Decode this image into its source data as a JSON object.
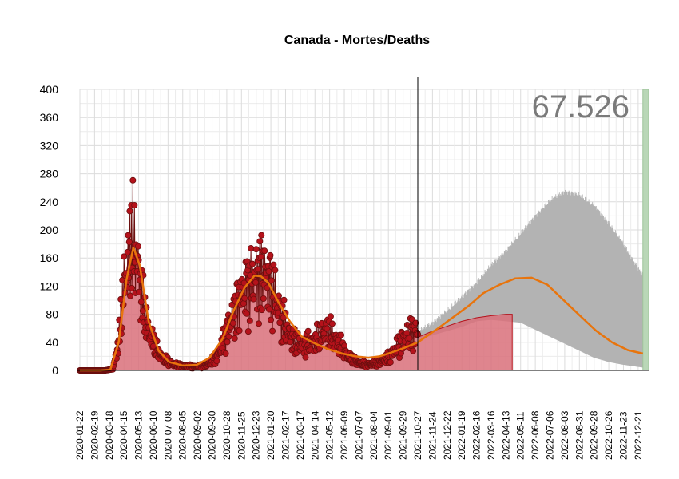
{
  "chart_data": {
    "type": "line",
    "title": "Canada - Mortes/Deaths",
    "annotation": "67.526",
    "ylim": [
      0,
      400
    ],
    "y_ticks": [
      0,
      40,
      80,
      120,
      160,
      200,
      240,
      280,
      320,
      360,
      400
    ],
    "x_start": "2020-01-22",
    "x_end": "2023-01-10",
    "forecast_start": "2021-10-27",
    "projection_end": "2022-04-25",
    "highlight_start": "2022-12-30",
    "x_tick_labels": [
      "2020-01-22",
      "2020-02-19",
      "2020-03-18",
      "2020-04-15",
      "2020-05-13",
      "2020-06-10",
      "2020-07-08",
      "2020-08-05",
      "2020-09-02",
      "2020-09-30",
      "2020-10-28",
      "2020-11-25",
      "2020-12-23",
      "2021-01-20",
      "2021-02-17",
      "2021-03-17",
      "2021-04-14",
      "2021-05-12",
      "2021-06-09",
      "2021-07-07",
      "2021-08-04",
      "2021-09-01",
      "2021-09-29",
      "2021-10-27",
      "2021-11-24",
      "2021-12-22",
      "2022-01-19",
      "2022-02-16",
      "2022-03-16",
      "2022-04-13",
      "2022-05-11",
      "2022-06-08",
      "2022-07-06",
      "2022-08-03",
      "2022-08-31",
      "2022-09-28",
      "2022-10-26",
      "2022-11-23",
      "2022-12-21"
    ],
    "grid": true,
    "colors": {
      "daily_area": "#d9707a",
      "daily_points": "#b5121b",
      "daily_line": "#6b0f0f",
      "trend": "#e8740c",
      "uncertainty_band": "#b3b3b3",
      "highlight": "#b9d7b7",
      "forecast_line": "#000000"
    },
    "series": [
      {
        "x": [
          "2020-01-22",
          "2020-03-10",
          "2020-03-25",
          "2020-04-05",
          "2020-04-15",
          "2020-04-25",
          "2020-05-01",
          "2020-05-10",
          "2020-05-20",
          "2020-06-01",
          "2020-06-15",
          "2020-07-01",
          "2020-07-20",
          "2020-08-10",
          "2020-09-01",
          "2020-09-20",
          "2020-10-10",
          "2020-10-28",
          "2020-11-15",
          "2020-12-01",
          "2020-12-15",
          "2020-12-23",
          "2021-01-05",
          "2021-01-15",
          "2021-01-25",
          "2021-02-05",
          "2021-02-20",
          "2021-03-10",
          "2021-03-25",
          "2021-04-10",
          "2021-04-25",
          "2021-05-05",
          "2021-05-15",
          "2021-06-01",
          "2021-06-15",
          "2021-07-01",
          "2021-07-20",
          "2021-08-10",
          "2021-09-01",
          "2021-09-20",
          "2021-10-05",
          "2021-10-20",
          "2021-10-27"
        ],
        "values": [
          0,
          0,
          2,
          40,
          120,
          165,
          180,
          160,
          95,
          55,
          30,
          15,
          8,
          6,
          5,
          8,
          20,
          55,
          90,
          115,
          125,
          132,
          140,
          130,
          110,
          85,
          55,
          38,
          35,
          40,
          48,
          55,
          50,
          35,
          20,
          12,
          8,
          10,
          18,
          35,
          50,
          55,
          50
        ]
      },
      {
        "x": [
          "2020-01-22",
          "2020-03-01",
          "2020-03-20",
          "2020-04-05",
          "2020-04-20",
          "2020-05-03",
          "2020-05-15",
          "2020-06-01",
          "2020-06-20",
          "2020-07-10",
          "2020-08-05",
          "2020-09-01",
          "2020-09-25",
          "2020-10-20",
          "2020-11-10",
          "2020-12-01",
          "2020-12-20",
          "2021-01-01",
          "2021-01-15",
          "2021-02-05",
          "2021-02-25",
          "2021-03-20",
          "2021-04-15",
          "2021-05-10",
          "2021-06-05",
          "2021-07-01",
          "2021-07-25",
          "2021-08-15",
          "2021-09-05",
          "2021-10-01",
          "2021-10-27",
          "2021-12-01",
          "2022-01-01",
          "2022-02-01",
          "2022-03-01",
          "2022-04-01",
          "2022-05-01",
          "2022-06-01",
          "2022-07-01",
          "2022-08-01",
          "2022-09-01",
          "2022-10-01",
          "2022-11-01",
          "2022-12-01",
          "2022-12-30"
        ],
        "values": [
          0,
          0,
          1,
          40,
          130,
          175,
          150,
          70,
          28,
          12,
          7,
          8,
          18,
          45,
          85,
          118,
          135,
          134,
          125,
          95,
          70,
          48,
          38,
          30,
          24,
          20,
          18,
          20,
          25,
          32,
          40,
          58,
          75,
          92,
          110,
          122,
          131,
          132,
          122,
          100,
          78,
          57,
          40,
          29,
          24
        ]
      },
      {
        "x": [
          "2021-10-27",
          "2021-11-24",
          "2021-12-22",
          "2022-01-19",
          "2022-02-16",
          "2022-03-16",
          "2022-04-13",
          "2022-04-25"
        ],
        "values": [
          47,
          56,
          63,
          70,
          75,
          78,
          80,
          80
        ]
      }
    ],
    "band": {
      "x": [
        "2021-10-27",
        "2021-11-24",
        "2021-12-22",
        "2022-01-19",
        "2022-02-16",
        "2022-03-16",
        "2022-04-13",
        "2022-05-11",
        "2022-06-08",
        "2022-07-06",
        "2022-08-03",
        "2022-08-31",
        "2022-09-28",
        "2022-10-26",
        "2022-11-23",
        "2022-12-21",
        "2022-12-30"
      ],
      "upper": [
        55,
        68,
        85,
        105,
        125,
        150,
        170,
        195,
        220,
        242,
        255,
        250,
        235,
        210,
        180,
        145,
        135
      ],
      "lower": [
        44,
        50,
        56,
        62,
        70,
        72,
        70,
        68,
        58,
        48,
        38,
        28,
        18,
        12,
        8,
        5,
        4
      ]
    }
  }
}
